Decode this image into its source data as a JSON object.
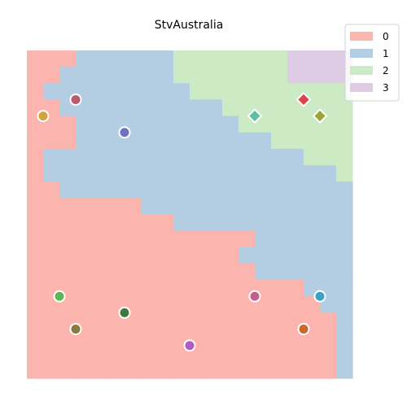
{
  "chart_data": {
    "type": "heatmap",
    "title": "StvAustralia",
    "legend": {
      "placement": "top-right",
      "entries": [
        {
          "label": "0",
          "color": "#fbb4ae"
        },
        {
          "label": "1",
          "color": "#b3cde3"
        },
        {
          "label": "2",
          "color": "#ccebc5"
        },
        {
          "label": "3",
          "color": "#decbe4"
        }
      ]
    },
    "grid_size": 20,
    "regions_description_rows": [
      "00011111122222223333",
      "00111111122222223333",
      "01111111112222222222",
      "00111111111122222222",
      "00011111111112222222",
      "00011111111111122222",
      "01111111111111111222",
      "01111111111111111112",
      "00111111111111111111",
      "00000001111111111111",
      "00000000011111111111",
      "00000000000000111111",
      "00000000000001111111",
      "00000000000000111111",
      "00000000000000000111",
      "00000000000000000011",
      "00000000000000000001",
      "00000000000000000001",
      "00000000000000000001",
      "00000000000000000001"
    ],
    "points": [
      {
        "x": 1,
        "y": 4,
        "marker": "circle",
        "color": "#d4a23c"
      },
      {
        "x": 3,
        "y": 5,
        "marker": "circle",
        "color": "#b85a6e"
      },
      {
        "x": 6,
        "y": 3,
        "marker": "circle",
        "color": "#6f6fc4"
      },
      {
        "x": 14,
        "y": 4,
        "marker": "diamond",
        "color": "#5fbf9f"
      },
      {
        "x": 17,
        "y": 5,
        "marker": "diamond",
        "color": "#d9444a"
      },
      {
        "x": 18,
        "y": 4,
        "marker": "diamond",
        "color": "#9aa63a"
      },
      {
        "x": 2,
        "y": -7,
        "marker": "circle",
        "color": "#5db85a"
      },
      {
        "x": 6,
        "y": -8,
        "marker": "circle",
        "color": "#3e7a3c"
      },
      {
        "x": 3,
        "y": -9,
        "marker": "circle",
        "color": "#8c7a3c"
      },
      {
        "x": 10,
        "y": -10,
        "marker": "circle",
        "color": "#b05cc4"
      },
      {
        "x": 14,
        "y": -7,
        "marker": "circle",
        "color": "#c45c8e"
      },
      {
        "x": 18,
        "y": -7,
        "marker": "circle",
        "color": "#3aa3c4"
      },
      {
        "x": 17,
        "y": -9,
        "marker": "circle",
        "color": "#c9682e"
      }
    ],
    "xlim": [
      0,
      20
    ],
    "ylim": [
      -12,
      8
    ],
    "grid": false,
    "axes_visible": false
  }
}
